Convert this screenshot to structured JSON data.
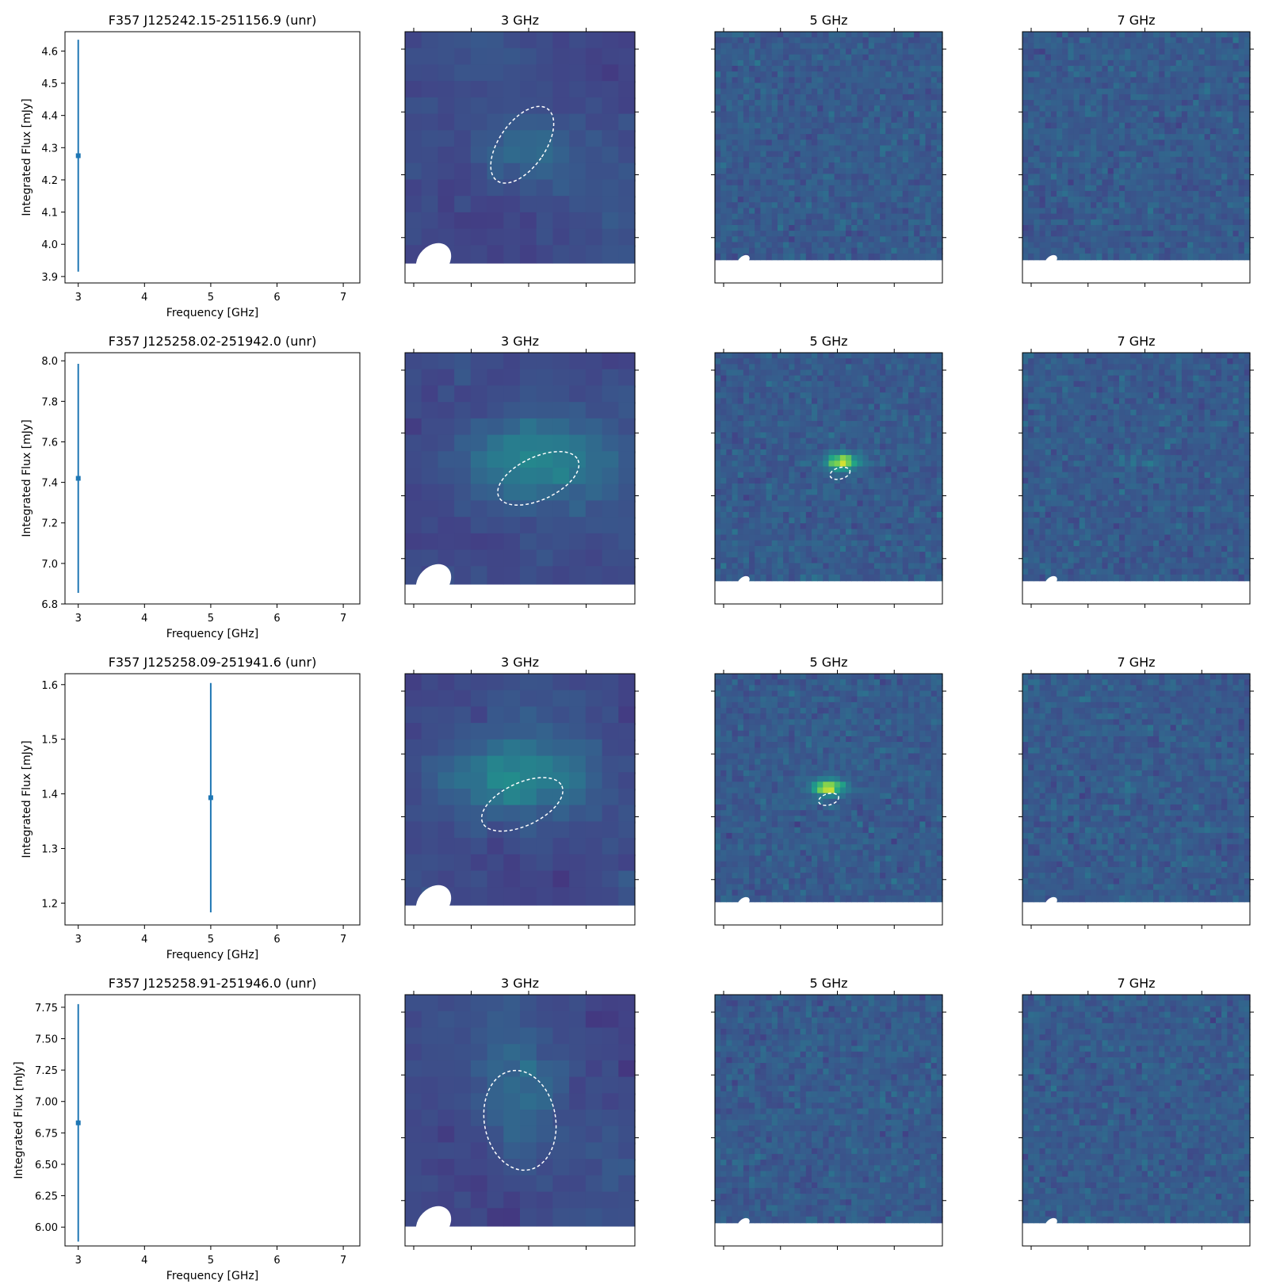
{
  "figure": {
    "axis_labels": {
      "x": "Frequency [GHz]",
      "y": "Integrated Flux [mJy]"
    },
    "series_color": "#1f77b4",
    "colormap": "viridis"
  },
  "chart_data": [
    {
      "type": "scatter",
      "title": "F357 J125242.15-251156.9 (unr)",
      "xlabel": "Frequency [GHz]",
      "ylabel": "Integrated Flux [mJy]",
      "xlim": [
        2.8,
        7.25
      ],
      "ylim": [
        3.88,
        4.66
      ],
      "xticks": [
        3,
        4,
        5,
        6,
        7
      ],
      "yticks": [
        "3.9",
        "4.0",
        "4.1",
        "4.2",
        "4.3",
        "4.4",
        "4.5",
        "4.6"
      ],
      "points": [
        {
          "x": 3,
          "y": 4.275,
          "yerr": 0.36
        }
      ],
      "images": [
        {
          "title": "3 GHz",
          "beam": "large",
          "source": {
            "cx": 0.52,
            "cy": 0.52,
            "a": 0.16,
            "b": 0.1,
            "peak": 0.45
          },
          "ellipse": {
            "cx": 0.51,
            "cy": 0.45,
            "rx": 0.2,
            "ry": 0.35,
            "angle": 35
          }
        },
        {
          "title": "5 GHz",
          "beam": "small",
          "source": null,
          "ellipse": null
        },
        {
          "title": "7 GHz",
          "beam": "small",
          "source": null,
          "ellipse": null
        }
      ]
    },
    {
      "type": "scatter",
      "title": "F357 J125258.02-251942.0 (unr)",
      "xlabel": "Frequency [GHz]",
      "ylabel": "Integrated Flux [mJy]",
      "xlim": [
        2.8,
        7.25
      ],
      "ylim": [
        6.8,
        8.04
      ],
      "xticks": [
        3,
        4,
        5,
        6,
        7
      ],
      "yticks": [
        "6.8",
        "7.0",
        "7.2",
        "7.4",
        "7.6",
        "7.8",
        "8.0"
      ],
      "points": [
        {
          "x": 3,
          "y": 7.42,
          "yerr": 0.565
        }
      ],
      "images": [
        {
          "title": "3 GHz",
          "beam": "large",
          "source": {
            "cx": 0.55,
            "cy": 0.47,
            "a": 0.24,
            "b": 0.12,
            "peak": 0.55
          },
          "ellipse": {
            "cx": 0.58,
            "cy": 0.5,
            "rx": 0.38,
            "ry": 0.17,
            "angle": -25
          }
        },
        {
          "title": "5 GHz",
          "beam": "small",
          "source": {
            "cx": 0.56,
            "cy": 0.48,
            "a": 0.05,
            "b": 0.025,
            "peak": 1.0
          },
          "ellipse": {
            "cx": 0.55,
            "cy": 0.48,
            "rx": 0.09,
            "ry": 0.045,
            "angle": -15
          }
        },
        {
          "title": "7 GHz",
          "beam": "small",
          "source": {
            "cx": 0.52,
            "cy": 0.48,
            "a": 0.07,
            "b": 0.015,
            "peak": 0.45
          },
          "ellipse": null
        }
      ]
    },
    {
      "type": "scatter",
      "title": "F357 J125258.09-251941.6 (unr)",
      "xlabel": "Frequency [GHz]",
      "ylabel": "Integrated Flux [mJy]",
      "xlim": [
        2.8,
        7.25
      ],
      "ylim": [
        1.16,
        1.62
      ],
      "xticks": [
        3,
        4,
        5,
        6,
        7
      ],
      "yticks": [
        "1.2",
        "1.3",
        "1.4",
        "1.5",
        "1.6"
      ],
      "points": [
        {
          "x": 5,
          "y": 1.393,
          "yerr": 0.21
        }
      ],
      "images": [
        {
          "title": "3 GHz",
          "beam": "large",
          "source": {
            "cx": 0.48,
            "cy": 0.45,
            "a": 0.24,
            "b": 0.12,
            "peak": 0.55
          },
          "ellipse": {
            "cx": 0.51,
            "cy": 0.52,
            "rx": 0.38,
            "ry": 0.17,
            "angle": -25
          }
        },
        {
          "title": "5 GHz",
          "beam": "small",
          "source": {
            "cx": 0.5,
            "cy": 0.5,
            "a": 0.05,
            "b": 0.025,
            "peak": 1.0
          },
          "ellipse": {
            "cx": 0.5,
            "cy": 0.5,
            "rx": 0.09,
            "ry": 0.045,
            "angle": -15
          }
        },
        {
          "title": "7 GHz",
          "beam": "small",
          "source": {
            "cx": 0.48,
            "cy": 0.5,
            "a": 0.07,
            "b": 0.015,
            "peak": 0.45
          },
          "ellipse": null
        }
      ]
    },
    {
      "type": "scatter",
      "title": "F357 J125258.91-251946.0 (unr)",
      "xlabel": "Frequency [GHz]",
      "ylabel": "Integrated Flux [mJy]",
      "xlim": [
        2.8,
        7.25
      ],
      "ylim": [
        5.85,
        7.85
      ],
      "xticks": [
        3,
        4,
        5,
        6,
        7
      ],
      "yticks": [
        "6.00",
        "6.25",
        "6.50",
        "6.75",
        "7.00",
        "7.25",
        "7.50",
        "7.75"
      ],
      "points": [
        {
          "x": 3,
          "y": 6.83,
          "yerr": 0.945
        }
      ],
      "images": [
        {
          "title": "3 GHz",
          "beam": "large",
          "source": {
            "cx": 0.5,
            "cy": 0.45,
            "a": 0.13,
            "b": 0.2,
            "peak": 0.45
          },
          "ellipse": {
            "cx": 0.5,
            "cy": 0.5,
            "rx": 0.31,
            "ry": 0.4,
            "angle": -10
          }
        },
        {
          "title": "5 GHz",
          "beam": "small",
          "source": null,
          "ellipse": null
        },
        {
          "title": "7 GHz",
          "beam": "small",
          "source": null,
          "ellipse": null
        }
      ]
    }
  ]
}
